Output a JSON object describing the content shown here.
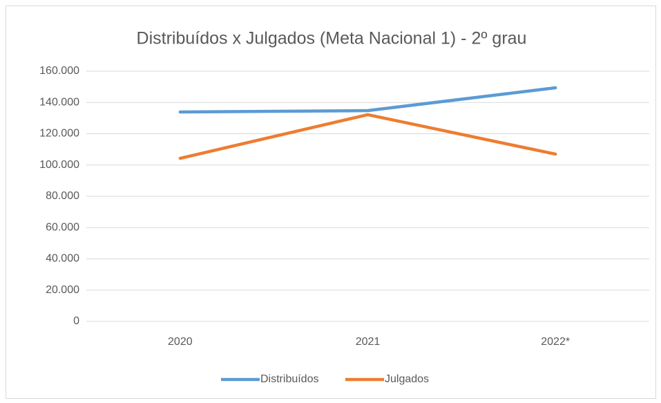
{
  "chart_data": {
    "type": "line",
    "title": "Distribuídos x Julgados (Meta Nacional 1) - 2º grau",
    "categories": [
      "2020",
      "2021",
      "2022*"
    ],
    "series": [
      {
        "name": "Distribuídos",
        "color": "#5b9bd5",
        "values": [
          133900,
          134800,
          149400
        ]
      },
      {
        "name": "Julgados",
        "color": "#ed7d31",
        "values": [
          104300,
          132200,
          107000
        ]
      }
    ],
    "ylim": [
      0,
      160000
    ],
    "yticks": [
      0,
      {
        "value": 20000,
        "label": "20.000"
      },
      {
        "value": 40000,
        "label": "40.000"
      },
      {
        "value": 60000,
        "label": "60.000"
      },
      {
        "value": 80000,
        "label": "80.000"
      },
      {
        "value": 100000,
        "label": "100.000"
      },
      {
        "value": 120000,
        "label": "120.000"
      },
      {
        "value": 140000,
        "label": "140.000"
      },
      {
        "value": 160000,
        "label": "160.000"
      }
    ],
    "grid": true,
    "legend": "bottom"
  }
}
